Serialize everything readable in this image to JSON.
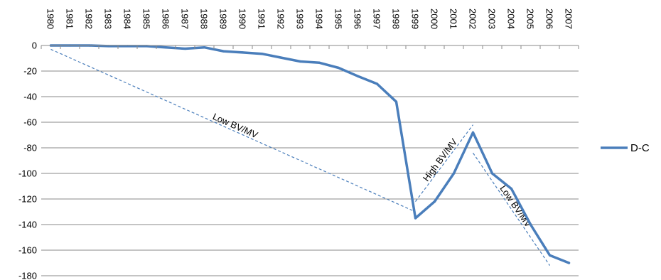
{
  "chart_data": {
    "type": "line",
    "title": "",
    "xlabel": "",
    "ylabel": "",
    "x": [
      "1980",
      "1981",
      "1982",
      "1983",
      "1984",
      "1985",
      "1986",
      "1987",
      "1988",
      "1989",
      "1990",
      "1991",
      "1992",
      "1993",
      "1994",
      "1995",
      "1996",
      "1997",
      "1998",
      "1999",
      "2000",
      "2001",
      "2002",
      "2003",
      "2004",
      "2005",
      "2006",
      "2007"
    ],
    "series": [
      {
        "name": "D-C",
        "color": "#4a7ebb",
        "values": [
          0,
          0,
          0,
          -0.5,
          -0.5,
          -0.5,
          -1.5,
          -2.5,
          -1.5,
          -4.5,
          -5.5,
          -6.5,
          -9.5,
          -12.5,
          -13.5,
          -17.5,
          -24,
          -30,
          -44,
          -135,
          -122,
          -100,
          -68,
          -100,
          -112,
          -140,
          -164,
          -170
        ]
      }
    ],
    "ylim": [
      -180,
      0
    ],
    "yticks": [
      "0",
      "-20",
      "-40",
      "-60",
      "-80",
      "-100",
      "-120",
      "-140",
      "-160",
      "-180"
    ],
    "grid": "horizontal",
    "x_axis_position": "top",
    "legend": "right",
    "annotations": [
      {
        "text": "Low BV/MV",
        "style": "dashed",
        "from": {
          "x": "1980",
          "y": -3
        },
        "to": {
          "x": "1999",
          "y": -130
        }
      },
      {
        "text": "High BV/MV",
        "style": "dashed",
        "from": {
          "x": "1999",
          "y": -122
        },
        "to": {
          "x": "2002",
          "y": -62
        }
      },
      {
        "text": "Low BV/MV",
        "style": "dashed",
        "from": {
          "x": "2002",
          "y": -84
        },
        "to": {
          "x": "2006",
          "y": -172
        }
      }
    ]
  }
}
